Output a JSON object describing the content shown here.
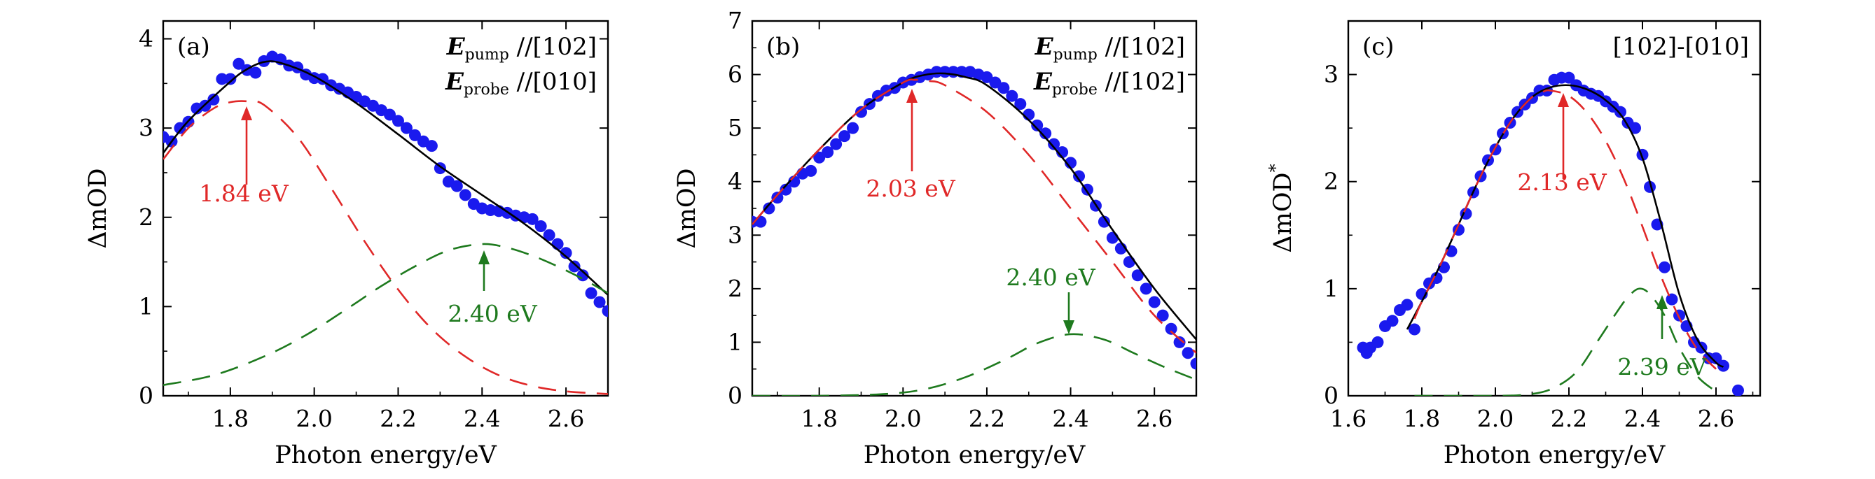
{
  "chart_data": [
    {
      "panel": "(a)",
      "type": "scatter",
      "title": "",
      "xlabel": "Photon energy/eV",
      "ylabel": "ΔmOD",
      "xlim": [
        1.64,
        2.7
      ],
      "ylim": [
        0,
        4.2
      ],
      "xticks": [
        1.8,
        2.0,
        2.2,
        2.4,
        2.6
      ],
      "yticks": [
        0,
        1,
        2,
        3,
        4
      ],
      "xtick_labels": [
        "1.8",
        "2.0",
        "2.2",
        "2.4",
        "2.6"
      ],
      "ytick_labels": [
        "0",
        "1",
        "2",
        "3",
        "4"
      ],
      "legend_lines": [
        {
          "symbol": "E",
          "subscript": "pump",
          "text": "//[102]"
        },
        {
          "symbol": "E",
          "subscript": "probe",
          "text": "//[010]"
        }
      ],
      "series": [
        {
          "name": "data",
          "kind": "points",
          "color": "#1a1aee",
          "x": [
            1.64,
            1.66,
            1.68,
            1.7,
            1.72,
            1.74,
            1.76,
            1.78,
            1.8,
            1.82,
            1.84,
            1.86,
            1.88,
            1.9,
            1.92,
            1.94,
            1.96,
            1.98,
            2.0,
            2.02,
            2.04,
            2.06,
            2.08,
            2.1,
            2.12,
            2.14,
            2.16,
            2.18,
            2.2,
            2.22,
            2.24,
            2.26,
            2.28,
            2.3,
            2.32,
            2.34,
            2.36,
            2.38,
            2.4,
            2.42,
            2.44,
            2.46,
            2.48,
            2.5,
            2.52,
            2.54,
            2.56,
            2.58,
            2.6,
            2.62,
            2.64,
            2.66,
            2.68,
            2.7
          ],
          "y": [
            2.9,
            2.85,
            3.0,
            3.07,
            3.22,
            3.25,
            3.32,
            3.55,
            3.55,
            3.72,
            3.65,
            3.62,
            3.75,
            3.8,
            3.77,
            3.7,
            3.68,
            3.6,
            3.56,
            3.55,
            3.48,
            3.44,
            3.4,
            3.35,
            3.3,
            3.25,
            3.2,
            3.15,
            3.08,
            3.0,
            2.92,
            2.85,
            2.8,
            2.55,
            2.4,
            2.35,
            2.25,
            2.15,
            2.1,
            2.08,
            2.07,
            2.05,
            2.02,
            2.0,
            1.98,
            1.9,
            1.8,
            1.7,
            1.6,
            1.45,
            1.35,
            1.15,
            1.05,
            0.95
          ]
        },
        {
          "name": "fit",
          "kind": "line",
          "color": "#000000",
          "x": [
            1.64,
            1.7,
            1.8,
            1.84,
            1.88,
            1.92,
            2.0,
            2.1,
            2.2,
            2.3,
            2.4,
            2.5,
            2.6,
            2.7
          ],
          "y": [
            2.72,
            3.08,
            3.52,
            3.66,
            3.74,
            3.73,
            3.58,
            3.28,
            2.93,
            2.57,
            2.25,
            1.93,
            1.56,
            1.13
          ]
        },
        {
          "name": "component 1.84 eV",
          "kind": "dashed",
          "color": "#e02828",
          "x": [
            1.64,
            1.7,
            1.76,
            1.8,
            1.84,
            1.88,
            1.96,
            2.04,
            2.12,
            2.2,
            2.28,
            2.36,
            2.44,
            2.52,
            2.6,
            2.7
          ],
          "y": [
            2.65,
            3.0,
            3.22,
            3.29,
            3.3,
            3.26,
            2.9,
            2.33,
            1.73,
            1.19,
            0.75,
            0.44,
            0.23,
            0.11,
            0.05,
            0.02
          ]
        },
        {
          "name": "component 2.40 eV",
          "kind": "dashed",
          "color": "#1e7a1e",
          "x": [
            1.64,
            1.76,
            1.88,
            1.98,
            2.08,
            2.16,
            2.24,
            2.32,
            2.4,
            2.46,
            2.52,
            2.58,
            2.64,
            2.7
          ],
          "y": [
            0.12,
            0.23,
            0.44,
            0.68,
            0.98,
            1.23,
            1.45,
            1.63,
            1.7,
            1.66,
            1.57,
            1.45,
            1.31,
            1.15
          ]
        }
      ],
      "annotations": [
        {
          "text": "1.84 eV",
          "color": "#e02828",
          "x": 1.84,
          "y": 3.3
        },
        {
          "text": "2.40 eV",
          "color": "#1e7a1e",
          "x": 2.4,
          "y": 1.7
        }
      ]
    },
    {
      "panel": "(b)",
      "type": "scatter",
      "title": "",
      "xlabel": "Photon energy/eV",
      "ylabel": "ΔmOD",
      "xlim": [
        1.64,
        2.7
      ],
      "ylim": [
        0,
        7
      ],
      "xticks": [
        1.8,
        2.0,
        2.2,
        2.4,
        2.6
      ],
      "yticks": [
        0,
        1,
        2,
        3,
        4,
        5,
        6,
        7
      ],
      "xtick_labels": [
        "1.8",
        "2.0",
        "2.2",
        "2.4",
        "2.6"
      ],
      "ytick_labels": [
        "0",
        "1",
        "2",
        "3",
        "4",
        "5",
        "6",
        "7"
      ],
      "legend_lines": [
        {
          "symbol": "E",
          "subscript": "pump",
          "text": "//[102]"
        },
        {
          "symbol": "E",
          "subscript": "probe",
          "text": "//[102]"
        }
      ],
      "series": [
        {
          "name": "data",
          "kind": "points",
          "color": "#1a1aee",
          "x": [
            1.64,
            1.66,
            1.68,
            1.7,
            1.72,
            1.74,
            1.76,
            1.78,
            1.8,
            1.82,
            1.84,
            1.86,
            1.88,
            1.9,
            1.92,
            1.94,
            1.96,
            1.98,
            2.0,
            2.02,
            2.04,
            2.06,
            2.08,
            2.1,
            2.12,
            2.14,
            2.16,
            2.18,
            2.2,
            2.22,
            2.24,
            2.26,
            2.28,
            2.3,
            2.32,
            2.34,
            2.36,
            2.38,
            2.4,
            2.42,
            2.44,
            2.46,
            2.48,
            2.5,
            2.52,
            2.54,
            2.56,
            2.58,
            2.6,
            2.62,
            2.64,
            2.66,
            2.68,
            2.7
          ],
          "y": [
            3.25,
            3.25,
            3.5,
            3.7,
            3.85,
            4.0,
            4.15,
            4.2,
            4.45,
            4.55,
            4.7,
            4.85,
            5.0,
            5.3,
            5.45,
            5.6,
            5.7,
            5.75,
            5.85,
            5.9,
            5.95,
            6.0,
            6.05,
            6.05,
            6.05,
            6.05,
            6.05,
            6.0,
            5.95,
            5.85,
            5.75,
            5.6,
            5.45,
            5.25,
            5.05,
            4.9,
            4.7,
            4.55,
            4.35,
            4.1,
            3.85,
            3.55,
            3.25,
            2.95,
            2.75,
            2.5,
            2.25,
            2.0,
            1.75,
            1.5,
            1.25,
            1.0,
            0.8,
            0.6
          ]
        },
        {
          "name": "fit",
          "kind": "line",
          "color": "#000000",
          "x": [
            1.64,
            1.7,
            1.8,
            1.9,
            2.0,
            2.05,
            2.1,
            2.15,
            2.2,
            2.3,
            2.4,
            2.5,
            2.6,
            2.7
          ],
          "y": [
            3.2,
            3.75,
            4.6,
            5.35,
            5.85,
            5.99,
            6.02,
            5.95,
            5.8,
            5.15,
            4.25,
            3.1,
            2.0,
            1.05
          ]
        },
        {
          "name": "component 2.03 eV",
          "kind": "dashed",
          "color": "#e02828",
          "x": [
            1.64,
            1.7,
            1.8,
            1.9,
            2.0,
            2.03,
            2.06,
            2.1,
            2.2,
            2.3,
            2.4,
            2.5,
            2.6,
            2.7
          ],
          "y": [
            3.2,
            3.75,
            4.6,
            5.35,
            5.85,
            5.9,
            5.88,
            5.8,
            5.3,
            4.5,
            3.5,
            2.5,
            1.5,
            0.8
          ]
        },
        {
          "name": "component 2.40 eV",
          "kind": "dashed",
          "color": "#1e7a1e",
          "x": [
            1.64,
            1.8,
            1.95,
            2.05,
            2.15,
            2.25,
            2.32,
            2.4,
            2.48,
            2.55,
            2.62,
            2.7
          ],
          "y": [
            0.0,
            0.0,
            0.03,
            0.12,
            0.35,
            0.7,
            0.98,
            1.15,
            1.05,
            0.8,
            0.55,
            0.3
          ]
        }
      ],
      "annotations": [
        {
          "text": "2.03 eV",
          "color": "#e02828",
          "x": 2.03,
          "y": 5.9
        },
        {
          "text": "2.40 eV",
          "color": "#1e7a1e",
          "x": 2.4,
          "y": 1.15
        }
      ]
    },
    {
      "panel": "(c)",
      "type": "scatter",
      "title": "",
      "xlabel": "Photon energy/eV",
      "ylabel": "ΔmOD*",
      "xlim": [
        1.6,
        2.72
      ],
      "ylim": [
        0,
        3.5
      ],
      "xticks": [
        1.6,
        1.8,
        2.0,
        2.2,
        2.4,
        2.6
      ],
      "yticks": [
        0,
        1,
        2,
        3
      ],
      "xtick_labels": [
        "1.6",
        "1.8",
        "2.0",
        "2.2",
        "2.4",
        "2.6"
      ],
      "ytick_labels": [
        "0",
        "1",
        "2",
        "3"
      ],
      "legend_lines": [
        {
          "symbol": "",
          "subscript": "",
          "text": "[102]-[010]"
        }
      ],
      "series": [
        {
          "name": "data",
          "kind": "points",
          "color": "#1a1aee",
          "x": [
            1.64,
            1.65,
            1.66,
            1.68,
            1.7,
            1.72,
            1.74,
            1.76,
            1.78,
            1.8,
            1.82,
            1.84,
            1.86,
            1.88,
            1.9,
            1.92,
            1.94,
            1.96,
            1.98,
            2.0,
            2.02,
            2.04,
            2.06,
            2.08,
            2.1,
            2.12,
            2.14,
            2.16,
            2.18,
            2.2,
            2.22,
            2.24,
            2.26,
            2.28,
            2.3,
            2.32,
            2.34,
            2.36,
            2.38,
            2.4,
            2.42,
            2.44,
            2.46,
            2.48,
            2.5,
            2.52,
            2.54,
            2.56,
            2.58,
            2.6,
            2.62,
            2.66
          ],
          "y": [
            0.45,
            0.4,
            0.45,
            0.5,
            0.65,
            0.7,
            0.8,
            0.85,
            0.62,
            0.95,
            1.05,
            1.1,
            1.2,
            1.35,
            1.55,
            1.7,
            1.9,
            2.05,
            2.2,
            2.3,
            2.45,
            2.55,
            2.65,
            2.72,
            2.78,
            2.85,
            2.85,
            2.95,
            2.97,
            2.97,
            2.9,
            2.85,
            2.82,
            2.8,
            2.75,
            2.7,
            2.65,
            2.55,
            2.5,
            2.25,
            1.95,
            1.6,
            1.2,
            0.9,
            0.75,
            0.65,
            0.5,
            0.45,
            0.35,
            0.35,
            0.28,
            0.05
          ]
        },
        {
          "name": "fit",
          "kind": "line",
          "color": "#000000",
          "x": [
            1.76,
            1.8,
            1.85,
            1.9,
            1.95,
            2.0,
            2.05,
            2.1,
            2.15,
            2.2,
            2.25,
            2.3,
            2.35,
            2.4,
            2.45,
            2.5,
            2.55,
            2.6,
            2.62
          ],
          "y": [
            0.62,
            0.88,
            1.22,
            1.6,
            1.98,
            2.32,
            2.6,
            2.79,
            2.88,
            2.9,
            2.86,
            2.76,
            2.58,
            2.22,
            1.62,
            0.95,
            0.52,
            0.31,
            0.27
          ]
        },
        {
          "name": "component 2.13 eV",
          "kind": "dashed",
          "color": "#e02828",
          "x": [
            1.78,
            1.8,
            1.85,
            1.9,
            1.95,
            2.0,
            2.05,
            2.1,
            2.13,
            2.15,
            2.2,
            2.25,
            2.3,
            2.35,
            2.4,
            2.45,
            2.5,
            2.55,
            2.6
          ],
          "y": [
            0.72,
            0.88,
            1.22,
            1.6,
            1.98,
            2.32,
            2.6,
            2.79,
            2.84,
            2.85,
            2.8,
            2.64,
            2.38,
            2.02,
            1.58,
            1.12,
            0.73,
            0.43,
            0.25
          ]
        },
        {
          "name": "component 2.39 eV",
          "kind": "dashed",
          "color": "#1e7a1e",
          "x": [
            1.78,
            1.9,
            2.0,
            2.08,
            2.15,
            2.22,
            2.28,
            2.33,
            2.36,
            2.39,
            2.42,
            2.46,
            2.5,
            2.55,
            2.6
          ],
          "y": [
            0.0,
            0.0,
            0.0,
            0.01,
            0.06,
            0.22,
            0.52,
            0.78,
            0.92,
            1.0,
            0.95,
            0.75,
            0.45,
            0.18,
            0.04
          ]
        }
      ],
      "annotations": [
        {
          "text": "2.13 eV",
          "color": "#e02828",
          "x": 2.13,
          "y": 2.84
        },
        {
          "text": "2.39 eV",
          "color": "#1e7a1e",
          "x": 2.39,
          "y": 1.0
        }
      ]
    }
  ]
}
